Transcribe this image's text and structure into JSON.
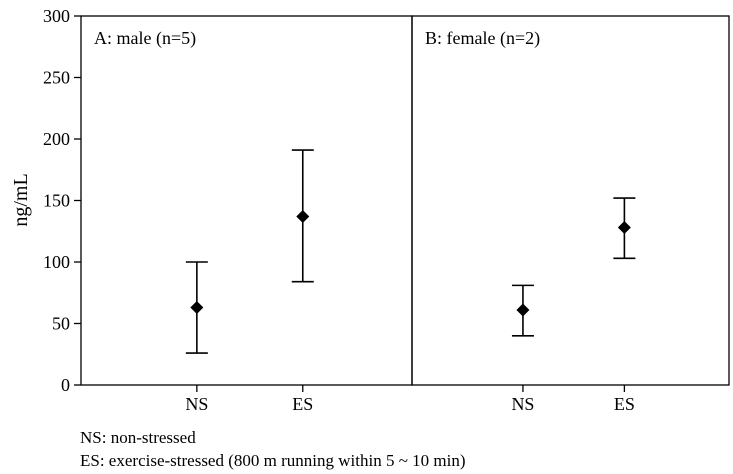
{
  "chart_data": {
    "type": "errorbar",
    "ylabel": "ng/mL",
    "ylim": [
      0,
      300
    ],
    "yticks": [
      0,
      50,
      100,
      150,
      200,
      250,
      300
    ],
    "panels": [
      {
        "title": "A: male (n=5)",
        "categories": [
          "NS",
          "ES"
        ],
        "points": [
          {
            "category": "NS",
            "mean": 63,
            "low": 26,
            "high": 100
          },
          {
            "category": "ES",
            "mean": 137,
            "low": 84,
            "high": 191
          }
        ]
      },
      {
        "title": "B: female (n=2)",
        "categories": [
          "NS",
          "ES"
        ],
        "points": [
          {
            "category": "NS",
            "mean": 61,
            "low": 40,
            "high": 81
          },
          {
            "category": "ES",
            "mean": 128,
            "low": 103,
            "high": 152
          }
        ]
      }
    ]
  },
  "notes": [
    "NS: non-stressed",
    "ES: exercise-stressed (800 m running within 5 ~ 10 min)"
  ]
}
